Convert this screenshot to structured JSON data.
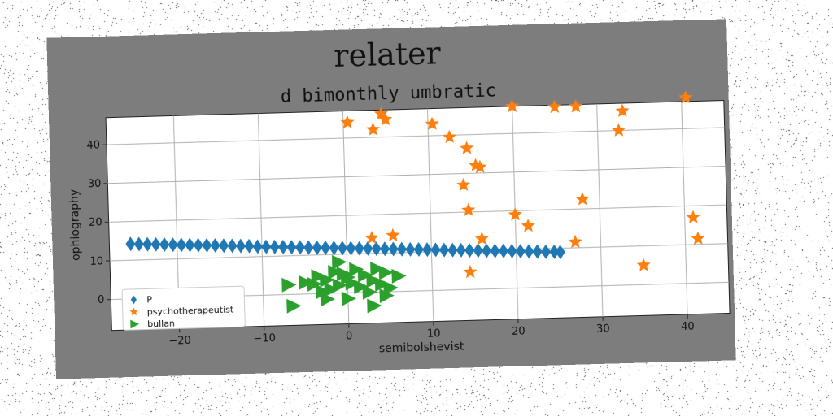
{
  "chart_data": {
    "type": "scatter",
    "suptitle": "relater",
    "title": "d bimonthly umbratic",
    "xlabel": "semibolshevist",
    "ylabel": "ophiography",
    "xlim": [
      -28,
      45
    ],
    "ylim": [
      -8,
      47
    ],
    "xticks": [
      -20,
      -10,
      0,
      10,
      20,
      30,
      40
    ],
    "yticks": [
      0,
      10,
      20,
      30,
      40
    ],
    "grid": true,
    "legend_position": "lower-left",
    "series": [
      {
        "name": "P",
        "marker": "diamond",
        "color": "#1f77b4",
        "points": [
          [
            -25.5,
            14.2
          ],
          [
            -24.5,
            14.1
          ],
          [
            -23.5,
            14.0
          ],
          [
            -22.5,
            13.9
          ],
          [
            -21.5,
            13.8
          ],
          [
            -20.5,
            13.7
          ],
          [
            -19.5,
            13.6
          ],
          [
            -18.5,
            13.5
          ],
          [
            -17.5,
            13.4
          ],
          [
            -16.5,
            13.3
          ],
          [
            -15.5,
            13.2
          ],
          [
            -14.5,
            13.1
          ],
          [
            -13.5,
            13.0
          ],
          [
            -12.5,
            12.9
          ],
          [
            -11.5,
            12.8
          ],
          [
            -10.5,
            12.6
          ],
          [
            -9.5,
            12.5
          ],
          [
            -8.5,
            12.4
          ],
          [
            -7.5,
            12.3
          ],
          [
            -6.5,
            12.2
          ],
          [
            -5.5,
            12.1
          ],
          [
            -4.5,
            12.0
          ],
          [
            -3.5,
            11.9
          ],
          [
            -2.5,
            11.8
          ],
          [
            -1.5,
            11.7
          ],
          [
            -0.5,
            11.6
          ],
          [
            0.5,
            11.5
          ],
          [
            1.5,
            11.4
          ],
          [
            2.5,
            11.3
          ],
          [
            3.5,
            11.2
          ],
          [
            4.5,
            11.1
          ],
          [
            5.5,
            11.0
          ],
          [
            6.5,
            10.9
          ],
          [
            7.5,
            10.8
          ],
          [
            8.5,
            10.7
          ],
          [
            9.5,
            10.6
          ],
          [
            10.5,
            10.5
          ],
          [
            11.5,
            10.4
          ],
          [
            12.5,
            10.3
          ],
          [
            13.5,
            10.2
          ],
          [
            14.5,
            10.1
          ],
          [
            15.5,
            10.0
          ],
          [
            16.5,
            9.9
          ],
          [
            17.5,
            9.8
          ],
          [
            18.5,
            9.7
          ],
          [
            19.5,
            9.6
          ],
          [
            20.5,
            9.5
          ],
          [
            21.5,
            9.4
          ],
          [
            22.5,
            9.3
          ],
          [
            23.5,
            9.2
          ],
          [
            24.5,
            9.1
          ],
          [
            25.2,
            9.0
          ]
        ]
      },
      {
        "name": "psychotherapeutist",
        "marker": "star",
        "color": "#ff7f0e",
        "points": [
          [
            0.5,
            44
          ],
          [
            3.5,
            42
          ],
          [
            4.5,
            46
          ],
          [
            5.0,
            44.5
          ],
          [
            10.5,
            43
          ],
          [
            12.5,
            39.5
          ],
          [
            14.5,
            36.5
          ],
          [
            15.5,
            32
          ],
          [
            16.0,
            31.5
          ],
          [
            14.0,
            27
          ],
          [
            14.5,
            20.5
          ],
          [
            16.0,
            13
          ],
          [
            14.5,
            4.5
          ],
          [
            3.0,
            14
          ],
          [
            5.5,
            14.5
          ],
          [
            20.0,
            47
          ],
          [
            25.0,
            46.5
          ],
          [
            27.5,
            46.5
          ],
          [
            33.0,
            45
          ],
          [
            32.5,
            40
          ],
          [
            40.5,
            48
          ],
          [
            20.0,
            19
          ],
          [
            21.5,
            16
          ],
          [
            28.0,
            22.5
          ],
          [
            27.0,
            11.5
          ],
          [
            35.0,
            5
          ],
          [
            41.0,
            17
          ],
          [
            41.5,
            11.5
          ]
        ]
      },
      {
        "name": "bullan",
        "marker": "triangle-right",
        "color": "#2ca02c",
        "points": [
          [
            -7.0,
            2.5
          ],
          [
            -6.5,
            -3.0
          ],
          [
            -5.0,
            3.0
          ],
          [
            -4.0,
            2.5
          ],
          [
            -3.0,
            0.5
          ],
          [
            -2.5,
            3.5
          ],
          [
            -2.0,
            1.0
          ],
          [
            -1.5,
            5.5
          ],
          [
            -1.0,
            8.0
          ],
          [
            -1.0,
            2.0
          ],
          [
            -0.5,
            5.0
          ],
          [
            0.0,
            4.0
          ],
          [
            0.0,
            -1.5
          ],
          [
            0.5,
            2.5
          ],
          [
            1.0,
            6.0
          ],
          [
            1.5,
            1.5
          ],
          [
            2.0,
            4.5
          ],
          [
            2.5,
            0.0
          ],
          [
            3.0,
            3.0
          ],
          [
            3.0,
            -3.5
          ],
          [
            3.5,
            6.0
          ],
          [
            4.0,
            2.0
          ],
          [
            4.5,
            5.0
          ],
          [
            4.5,
            -1.0
          ],
          [
            5.0,
            1.0
          ],
          [
            6.0,
            4.0
          ],
          [
            -2.5,
            -1.5
          ],
          [
            -3.5,
            4.5
          ]
        ]
      }
    ]
  }
}
